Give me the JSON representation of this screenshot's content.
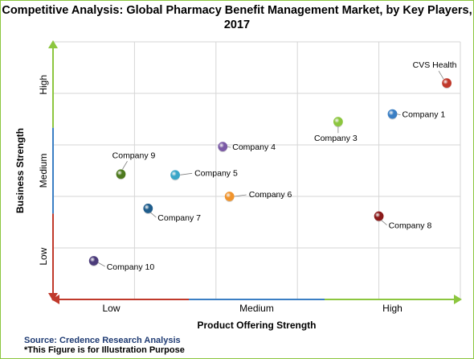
{
  "chart_data": {
    "type": "scatter",
    "title_line1": "Competitive Analysis: Global Pharmacy Benefit Management Market, by Key Players,",
    "title_line2": "2017",
    "xlabel": "Product Offering Strength",
    "ylabel": "Business Strength",
    "x_ticks": [
      "Low",
      "Medium",
      "High"
    ],
    "y_ticks": [
      "Low",
      "Medium",
      "High"
    ],
    "xlim": [
      0,
      3
    ],
    "ylim": [
      0,
      3
    ],
    "grid": true,
    "points": [
      {
        "name": "CVS Health",
        "x": 2.9,
        "y": 2.52,
        "color": "#c0392b"
      },
      {
        "name": "Company 1",
        "x": 2.5,
        "y": 2.16,
        "color": "#3b7fc4"
      },
      {
        "name": "Company 3",
        "x": 2.1,
        "y": 2.07,
        "color": "#8cc63f"
      },
      {
        "name": "Company 4",
        "x": 1.25,
        "y": 1.78,
        "color": "#7b5aa6"
      },
      {
        "name": "Company 5",
        "x": 0.9,
        "y": 1.45,
        "color": "#3aa6c8"
      },
      {
        "name": "Company 6",
        "x": 1.3,
        "y": 1.2,
        "color": "#f0932b"
      },
      {
        "name": "Company 7",
        "x": 0.7,
        "y": 1.06,
        "color": "#1f5d8c"
      },
      {
        "name": "Company 8",
        "x": 2.4,
        "y": 0.97,
        "color": "#8b1a1a"
      },
      {
        "name": "Company 9",
        "x": 0.5,
        "y": 1.46,
        "color": "#4e7a1f"
      },
      {
        "name": "Company 10",
        "x": 0.3,
        "y": 0.45,
        "color": "#4b3b7a"
      }
    ]
  },
  "footer": {
    "source": "Source: Credence Research Analysis",
    "note": "*This Figure is for Illustration Purpose"
  }
}
